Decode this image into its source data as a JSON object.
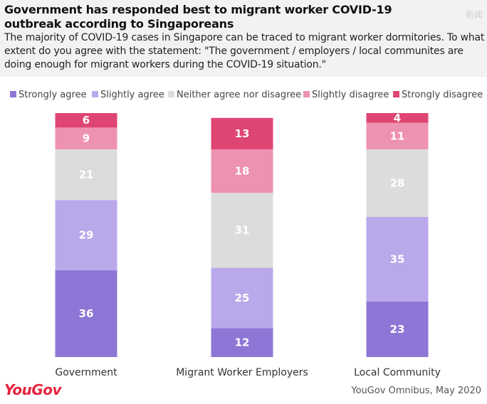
{
  "title": "Government has responded best to migrant worker COVID-19 outbreak according to Singaporeans",
  "subtitle": "The majority of COVID-19 cases in Singapore can be traced to migrant worker dormitories. To what extent do you agree with the statement: \"The government / employers / local communites are doing enough for migrant workers during the COVID-19 situation.\"",
  "watermark": "新闻",
  "brand": "YouGov",
  "source": "YouGov Omnibus, May 2020",
  "colors": {
    "strongly_agree": "#8e76d6",
    "slightly_agree": "#b9a9ea",
    "neither": "#dcdcdc",
    "slightly_disagree": "#ee92b1",
    "strongly_disagree": "#df4572"
  },
  "chart_data": {
    "type": "bar",
    "stacked": true,
    "categories": [
      "Government",
      "Migrant Worker Employers",
      "Local Community"
    ],
    "series": [
      {
        "name": "Strongly agree",
        "values": [
          36,
          12,
          23
        ]
      },
      {
        "name": "Slightly agree",
        "values": [
          29,
          25,
          35
        ]
      },
      {
        "name": "Neither agree nor disagree",
        "values": [
          21,
          31,
          28
        ]
      },
      {
        "name": "Slightly disagree",
        "values": [
          9,
          18,
          11
        ]
      },
      {
        "name": "Strongly disagree",
        "values": [
          6,
          13,
          4
        ]
      }
    ],
    "ylim": [
      0,
      101
    ],
    "legend_position": "top",
    "grid": false
  }
}
